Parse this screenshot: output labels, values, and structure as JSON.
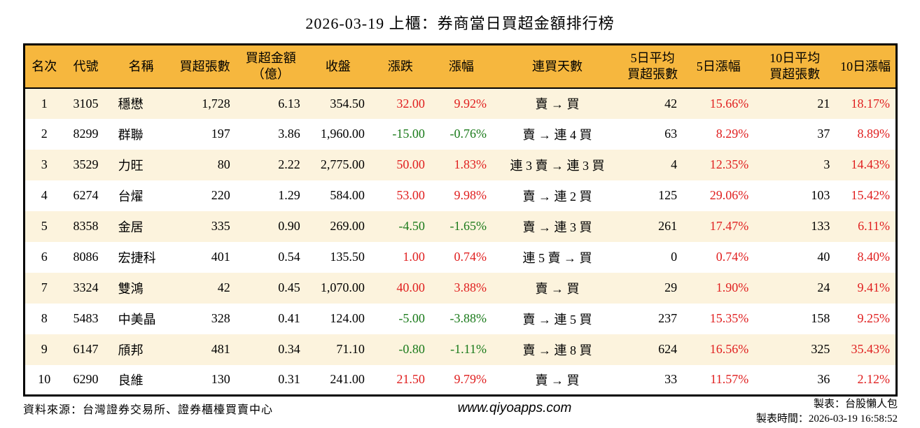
{
  "title": "2026-03-19 上櫃：券商當日買超金額排行榜",
  "chart_data": {
    "type": "table",
    "title": "2026-03-19 上櫃：券商當日買超金額排行榜",
    "columns": [
      {
        "key": "rank",
        "label": "名次",
        "align": "center",
        "width": 56,
        "color": "plain"
      },
      {
        "key": "code",
        "label": "代號",
        "align": "center",
        "width": 64,
        "color": "plain"
      },
      {
        "key": "name",
        "label": "名稱",
        "align": "left",
        "width": 94,
        "color": "plain"
      },
      {
        "key": "volume",
        "label": "買超張數",
        "align": "right",
        "width": 88,
        "color": "plain"
      },
      {
        "key": "amount",
        "label": "買超金額\n（億）",
        "align": "right",
        "width": 100,
        "color": "plain"
      },
      {
        "key": "close",
        "label": "收盤",
        "align": "right",
        "width": 92,
        "color": "plain"
      },
      {
        "key": "change",
        "label": "漲跌",
        "align": "right",
        "width": 86,
        "color": "signed"
      },
      {
        "key": "change_pct",
        "label": "漲幅",
        "align": "right",
        "width": 88,
        "color": "signed"
      },
      {
        "key": "streak",
        "label": "連買天數",
        "align": "center",
        "width": 186,
        "color": "plain"
      },
      {
        "key": "avg5",
        "label": "5日平均\n買超張數",
        "align": "right",
        "width": 86,
        "color": "plain"
      },
      {
        "key": "pct5",
        "label": "5日漲幅",
        "align": "right",
        "width": 102,
        "color": "signed"
      },
      {
        "key": "avg10",
        "label": "10日平均\n買超張數",
        "align": "right",
        "width": 116,
        "color": "plain"
      },
      {
        "key": "pct10",
        "label": "10日漲幅",
        "align": "right",
        "width": 87,
        "color": "signed"
      }
    ],
    "rows": [
      {
        "rank": "1",
        "code": "3105",
        "name": "穩懋",
        "volume": "1,728",
        "amount": "6.13",
        "close": "354.50",
        "change": "32.00",
        "change_pct": "9.92%",
        "streak": "賣 → 買",
        "avg5": "42",
        "pct5": "15.66%",
        "avg10": "21",
        "pct10": "18.17%"
      },
      {
        "rank": "2",
        "code": "8299",
        "name": "群聯",
        "volume": "197",
        "amount": "3.86",
        "close": "1,960.00",
        "change": "-15.00",
        "change_pct": "-0.76%",
        "streak": "賣 → 連 4 買",
        "avg5": "63",
        "pct5": "8.29%",
        "avg10": "37",
        "pct10": "8.89%"
      },
      {
        "rank": "3",
        "code": "3529",
        "name": "力旺",
        "volume": "80",
        "amount": "2.22",
        "close": "2,775.00",
        "change": "50.00",
        "change_pct": "1.83%",
        "streak": "連 3 賣 → 連 3 買",
        "avg5": "4",
        "pct5": "12.35%",
        "avg10": "3",
        "pct10": "14.43%"
      },
      {
        "rank": "4",
        "code": "6274",
        "name": "台燿",
        "volume": "220",
        "amount": "1.29",
        "close": "584.00",
        "change": "53.00",
        "change_pct": "9.98%",
        "streak": "賣 → 連 2 買",
        "avg5": "125",
        "pct5": "29.06%",
        "avg10": "103",
        "pct10": "15.42%"
      },
      {
        "rank": "5",
        "code": "8358",
        "name": "金居",
        "volume": "335",
        "amount": "0.90",
        "close": "269.00",
        "change": "-4.50",
        "change_pct": "-1.65%",
        "streak": "賣 → 連 3 買",
        "avg5": "261",
        "pct5": "17.47%",
        "avg10": "133",
        "pct10": "6.11%"
      },
      {
        "rank": "6",
        "code": "8086",
        "name": "宏捷科",
        "volume": "401",
        "amount": "0.54",
        "close": "135.50",
        "change": "1.00",
        "change_pct": "0.74%",
        "streak": "連 5 賣 → 買",
        "avg5": "0",
        "pct5": "0.74%",
        "avg10": "40",
        "pct10": "8.40%"
      },
      {
        "rank": "7",
        "code": "3324",
        "name": "雙鴻",
        "volume": "42",
        "amount": "0.45",
        "close": "1,070.00",
        "change": "40.00",
        "change_pct": "3.88%",
        "streak": "賣 → 買",
        "avg5": "29",
        "pct5": "1.90%",
        "avg10": "24",
        "pct10": "9.41%"
      },
      {
        "rank": "8",
        "code": "5483",
        "name": "中美晶",
        "volume": "328",
        "amount": "0.41",
        "close": "124.00",
        "change": "-5.00",
        "change_pct": "-3.88%",
        "streak": "賣 → 連 5 買",
        "avg5": "237",
        "pct5": "15.35%",
        "avg10": "158",
        "pct10": "9.25%"
      },
      {
        "rank": "9",
        "code": "6147",
        "name": "頎邦",
        "volume": "481",
        "amount": "0.34",
        "close": "71.10",
        "change": "-0.80",
        "change_pct": "-1.11%",
        "streak": "賣 → 連 8 買",
        "avg5": "624",
        "pct5": "16.56%",
        "avg10": "325",
        "pct10": "35.43%"
      },
      {
        "rank": "10",
        "code": "6290",
        "name": "良維",
        "volume": "130",
        "amount": "0.31",
        "close": "241.00",
        "change": "21.50",
        "change_pct": "9.79%",
        "streak": "賣 → 買",
        "avg5": "33",
        "pct5": "11.57%",
        "avg10": "36",
        "pct10": "2.12%"
      }
    ],
    "layout": {
      "header_rows": 1,
      "grid": false,
      "alternating_rows": true
    }
  },
  "footer": {
    "source": "資料來源：台灣證券交易所、證券櫃檯買賣中心",
    "website": "www.qiyoapps.com",
    "maker": "製表：台股懶人包",
    "timestamp": "製表時間：2026-03-19 16:58:52"
  },
  "colors": {
    "header_bg": "#f6b73e",
    "row_alt_bg": "#fcf3dd",
    "up_red": "#e01f1f",
    "down_green": "#1a7a1a",
    "border": "#000000"
  }
}
